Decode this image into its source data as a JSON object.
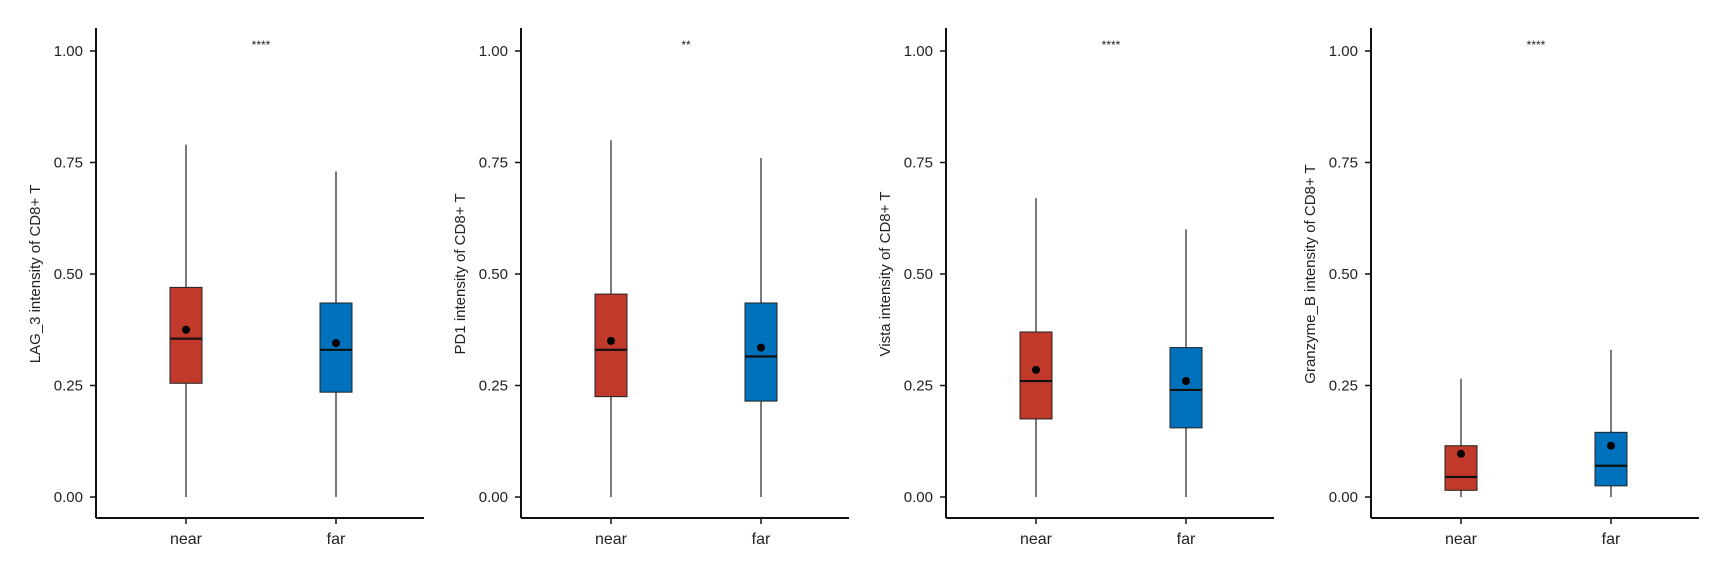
{
  "chart_data": [
    {
      "type": "box",
      "categories": [
        "near",
        "far"
      ],
      "ylabel": "LAG_3 intensity of CD8+ T",
      "ylim": [
        0,
        1.05
      ],
      "yticks": [
        "0.00",
        "0.25",
        "0.50",
        "0.75",
        "1.00"
      ],
      "significance": "****",
      "series": [
        {
          "category": "near",
          "color": "#C0392B",
          "min": 0.0,
          "q1": 0.255,
          "median": 0.355,
          "q3": 0.47,
          "max": 0.79,
          "mean": 0.375
        },
        {
          "category": "far",
          "color": "#0072BD",
          "min": 0.0,
          "q1": 0.235,
          "median": 0.33,
          "q3": 0.435,
          "max": 0.73,
          "mean": 0.345
        }
      ]
    },
    {
      "type": "box",
      "categories": [
        "near",
        "far"
      ],
      "ylabel": "PD1 intensity of CD8+ T",
      "ylim": [
        0,
        1.05
      ],
      "yticks": [
        "0.00",
        "0.25",
        "0.50",
        "0.75",
        "1.00"
      ],
      "significance": "**",
      "series": [
        {
          "category": "near",
          "color": "#C0392B",
          "min": 0.0,
          "q1": 0.225,
          "median": 0.33,
          "q3": 0.455,
          "max": 0.8,
          "mean": 0.35
        },
        {
          "category": "far",
          "color": "#0072BD",
          "min": 0.0,
          "q1": 0.215,
          "median": 0.315,
          "q3": 0.435,
          "max": 0.76,
          "mean": 0.335
        }
      ]
    },
    {
      "type": "box",
      "categories": [
        "near",
        "far"
      ],
      "ylabel": "Vista intensity of CD8+ T",
      "ylim": [
        0,
        1.05
      ],
      "yticks": [
        "0.00",
        "0.25",
        "0.50",
        "0.75",
        "1.00"
      ],
      "significance": "****",
      "series": [
        {
          "category": "near",
          "color": "#C0392B",
          "min": 0.0,
          "q1": 0.175,
          "median": 0.26,
          "q3": 0.37,
          "max": 0.67,
          "mean": 0.285
        },
        {
          "category": "far",
          "color": "#0072BD",
          "min": 0.0,
          "q1": 0.155,
          "median": 0.24,
          "q3": 0.335,
          "max": 0.6,
          "mean": 0.26
        }
      ]
    },
    {
      "type": "box",
      "categories": [
        "near",
        "far"
      ],
      "ylabel": "Granzyme_B intensity of CD8+ T",
      "ylim": [
        0,
        1.05
      ],
      "yticks": [
        "0.00",
        "0.25",
        "0.50",
        "0.75",
        "1.00"
      ],
      "significance": "****",
      "series": [
        {
          "category": "near",
          "color": "#C0392B",
          "min": 0.0,
          "q1": 0.015,
          "median": 0.045,
          "q3": 0.115,
          "max": 0.265,
          "mean": 0.097
        },
        {
          "category": "far",
          "color": "#0072BD",
          "min": 0.0,
          "q1": 0.025,
          "median": 0.07,
          "q3": 0.145,
          "max": 0.33,
          "mean": 0.115
        }
      ]
    }
  ]
}
